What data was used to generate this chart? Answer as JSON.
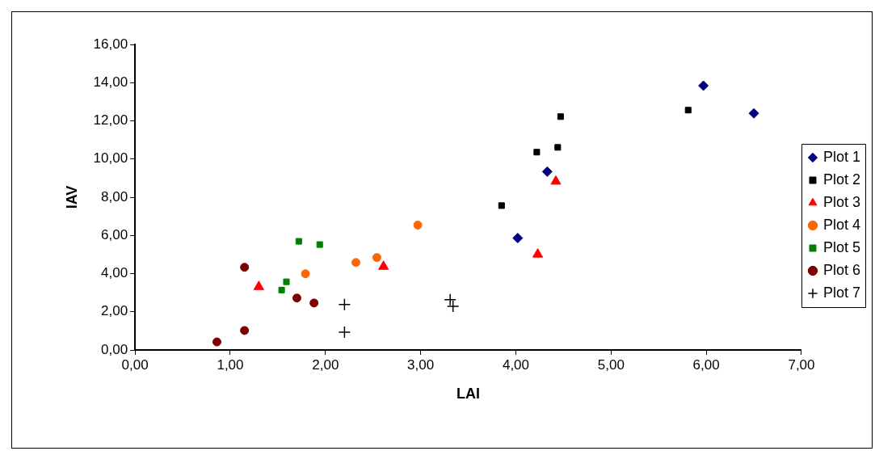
{
  "chart_data": {
    "type": "scatter",
    "xlabel": "LAI",
    "ylabel": "IAV",
    "legend": "right",
    "grid": false,
    "xlim": [
      0,
      7
    ],
    "ylim": [
      0,
      16
    ],
    "xticks": [
      {
        "value": 0,
        "label": "0,00"
      },
      {
        "value": 1,
        "label": "1,00"
      },
      {
        "value": 2,
        "label": "2,00"
      },
      {
        "value": 3,
        "label": "3,00"
      },
      {
        "value": 4,
        "label": "4,00"
      },
      {
        "value": 5,
        "label": "5,00"
      },
      {
        "value": 6,
        "label": "6,00"
      },
      {
        "value": 7,
        "label": "7,00"
      }
    ],
    "yticks": [
      {
        "value": 0,
        "label": "0,00"
      },
      {
        "value": 2,
        "label": "2,00"
      },
      {
        "value": 4,
        "label": "4,00"
      },
      {
        "value": 6,
        "label": "6,00"
      },
      {
        "value": 8,
        "label": "8,00"
      },
      {
        "value": 10,
        "label": "10,00"
      },
      {
        "value": 12,
        "label": "12,00"
      },
      {
        "value": 14,
        "label": "14,00"
      },
      {
        "value": 16,
        "label": "16,00"
      }
    ],
    "series": [
      {
        "name": "Plot 1",
        "color": "#000080",
        "marker": "diamond",
        "x": [
          4.02,
          4.33,
          5.97,
          6.5
        ],
        "values": [
          5.86,
          9.34,
          13.84,
          12.39
        ]
      },
      {
        "name": "Plot 2",
        "color": "#000000",
        "marker": "square",
        "x": [
          3.85,
          4.22,
          4.44,
          4.47,
          5.81
        ],
        "values": [
          7.56,
          10.36,
          10.61,
          12.22,
          12.56
        ]
      },
      {
        "name": "Plot 3",
        "color": "#ff0000",
        "marker": "triangle",
        "x": [
          1.3,
          2.61,
          4.23,
          4.42
        ],
        "values": [
          3.31,
          4.37,
          5.01,
          8.83
        ]
      },
      {
        "name": "Plot 4",
        "color": "#ff6600",
        "marker": "circle",
        "x": [
          1.79,
          2.32,
          2.54,
          2.97
        ],
        "values": [
          3.99,
          4.58,
          4.84,
          6.54
        ]
      },
      {
        "name": "Plot 5",
        "color": "#008000",
        "marker": "square",
        "x": [
          1.72,
          1.94,
          1.59,
          1.54
        ],
        "values": [
          5.69,
          5.52,
          3.57,
          3.14
        ]
      },
      {
        "name": "Plot 6",
        "color": "#800000",
        "marker": "circle",
        "x": [
          0.86,
          1.15,
          1.15,
          1.7,
          1.88
        ],
        "values": [
          0.42,
          1.02,
          4.33,
          2.72,
          2.46
        ]
      },
      {
        "name": "Plot 7",
        "color": "#000000",
        "marker": "cross",
        "x": [
          2.2,
          2.2,
          3.31,
          3.34
        ],
        "values": [
          2.38,
          0.93,
          2.63,
          2.29
        ]
      }
    ]
  }
}
